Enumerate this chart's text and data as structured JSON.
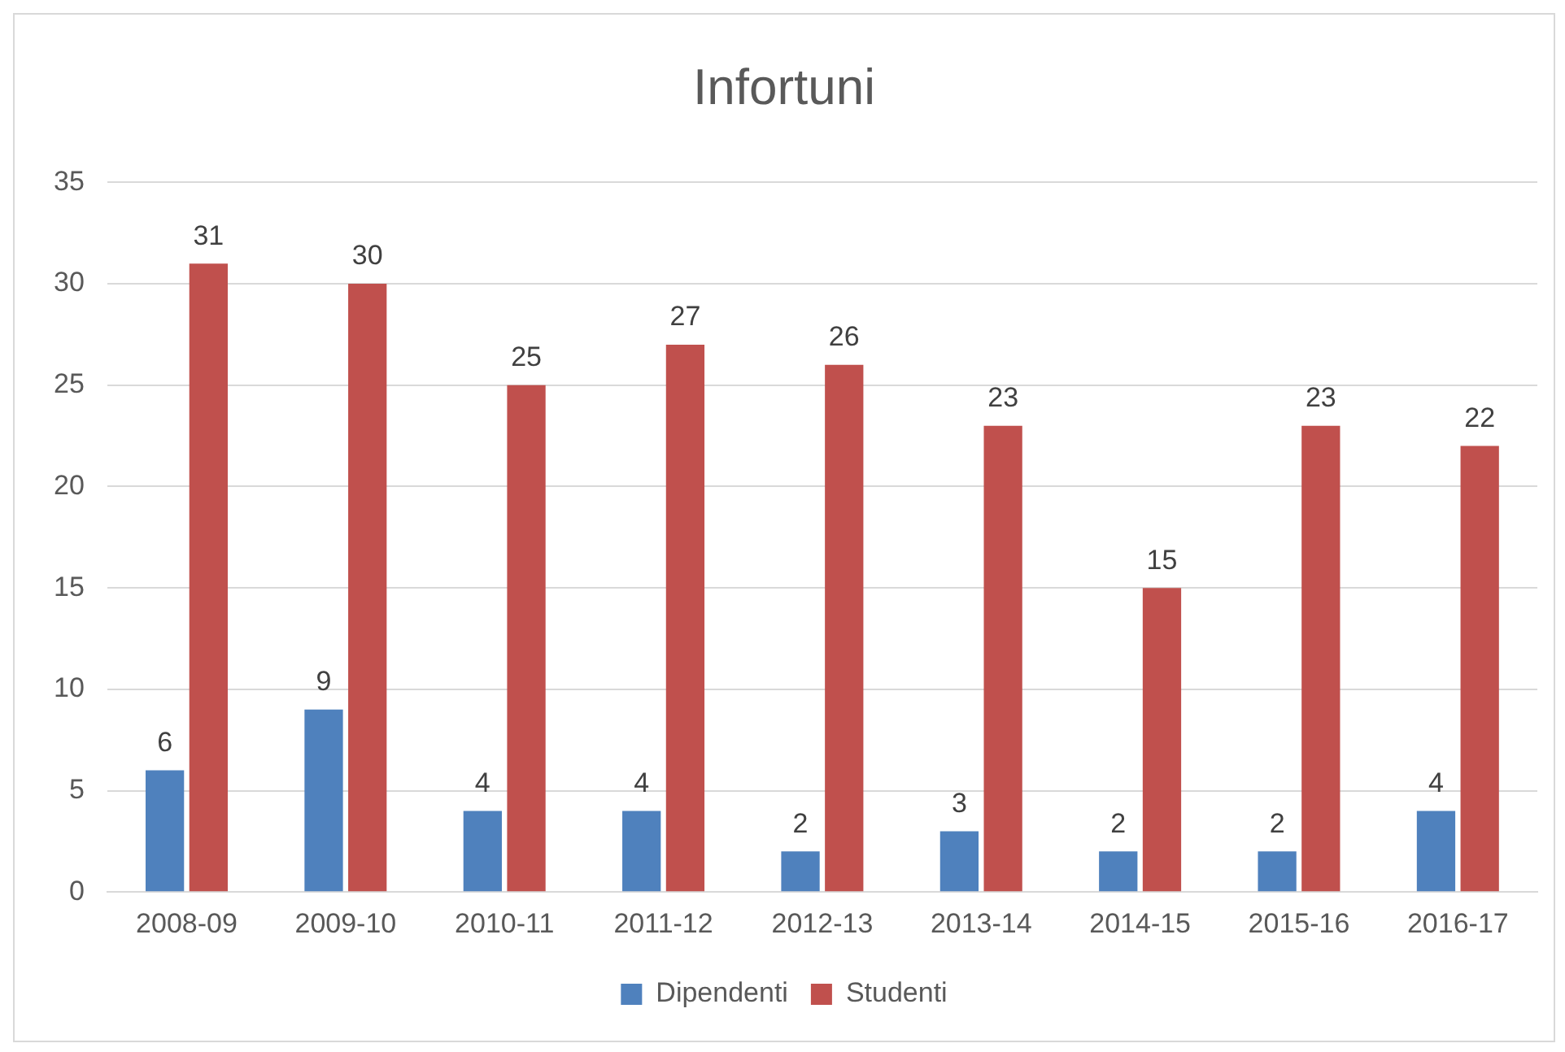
{
  "chart_data": {
    "type": "bar",
    "title": "Infortuni",
    "categories": [
      "2008-09",
      "2009-10",
      "2010-11",
      "2011-12",
      "2012-13",
      "2013-14",
      "2014-15",
      "2015-16",
      "2016-17"
    ],
    "series": [
      {
        "name": "Dipendenti",
        "color": "#4f81bd",
        "values": [
          6,
          9,
          4,
          4,
          2,
          3,
          2,
          2,
          4
        ]
      },
      {
        "name": "Studenti",
        "color": "#c0504d",
        "values": [
          31,
          30,
          25,
          27,
          26,
          23,
          15,
          23,
          22
        ]
      }
    ],
    "ylim": [
      0,
      35
    ],
    "yticks": [
      0,
      5,
      10,
      15,
      20,
      25,
      30,
      35
    ],
    "grid": "y",
    "legend": "bottom",
    "data_labels": true
  }
}
